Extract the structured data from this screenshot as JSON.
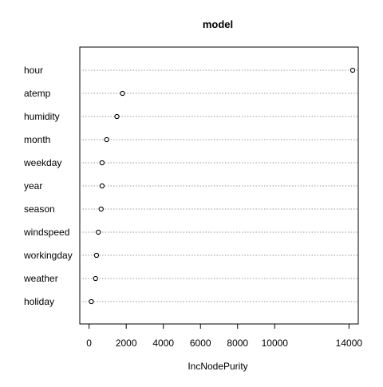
{
  "chart_data": {
    "type": "scatter",
    "title": "model",
    "xlabel": "IncNodePurity",
    "ylabel": "",
    "variables": [
      "hour",
      "atemp",
      "humidity",
      "month",
      "weekday",
      "year",
      "season",
      "windspeed",
      "workingday",
      "weather",
      "holiday"
    ],
    "values": [
      14200,
      1800,
      1500,
      950,
      700,
      700,
      650,
      500,
      400,
      350,
      120
    ],
    "xticks": [
      0,
      2000,
      4000,
      6000,
      8000,
      10000,
      14000
    ],
    "xlim": [
      -500,
      14500
    ],
    "grid": false
  }
}
